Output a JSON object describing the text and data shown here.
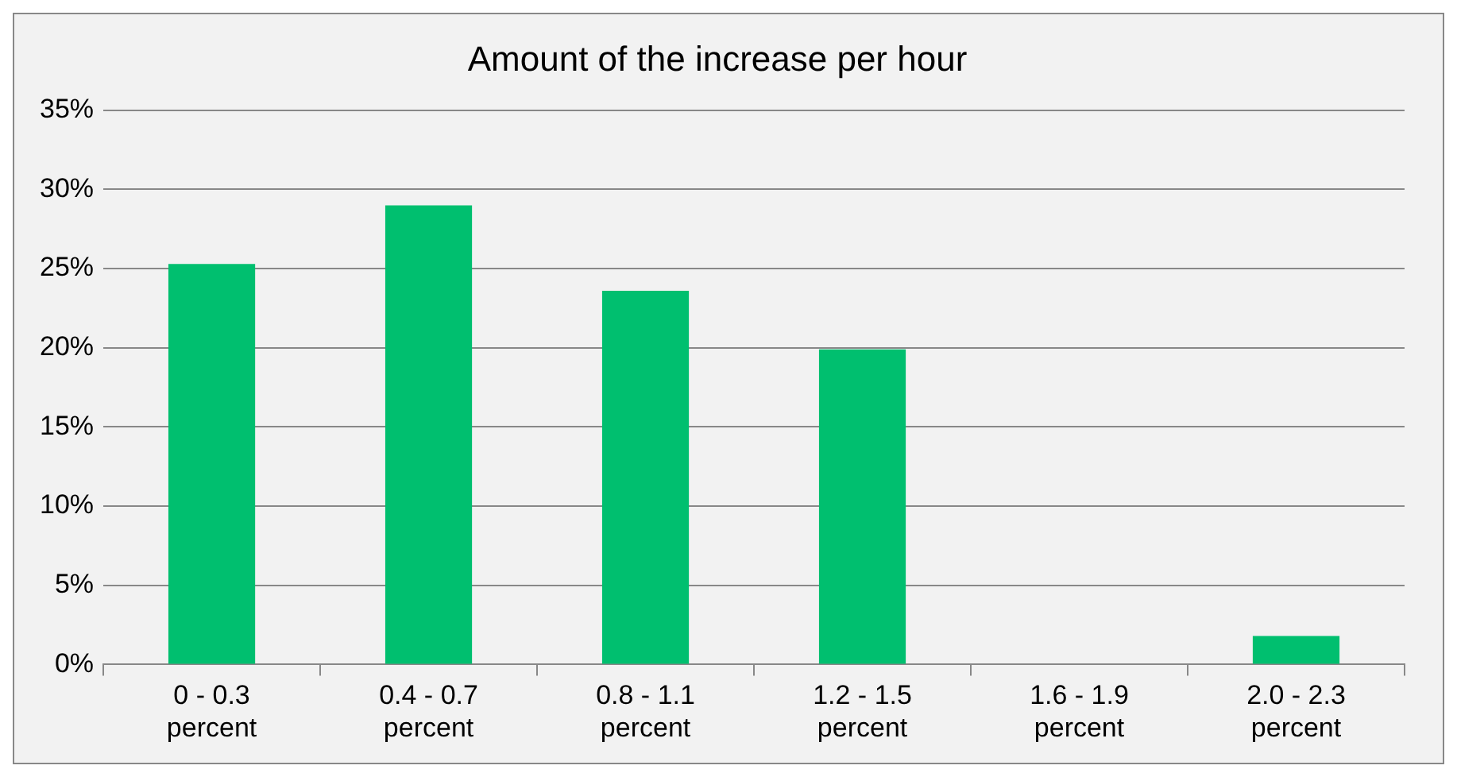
{
  "chart_data": {
    "type": "bar",
    "title": "Amount of the increase per hour",
    "categories": [
      "0 - 0.3 percent",
      "0.4 - 0.7 percent",
      "0.8 - 1.1 percent",
      "1.2 - 1.5 percent",
      "1.6 - 1.9 percent",
      "2.0 - 2.3 percent"
    ],
    "values": [
      25.3,
      29.0,
      23.6,
      19.9,
      0,
      1.8
    ],
    "color": "#00bf6f",
    "ylim": [
      0,
      35
    ],
    "yticks": [
      {
        "value": 0,
        "label": "0%"
      },
      {
        "value": 5,
        "label": "5%"
      },
      {
        "value": 10,
        "label": "10%"
      },
      {
        "value": 15,
        "label": "15%"
      },
      {
        "value": 20,
        "label": "20%"
      },
      {
        "value": 25,
        "label": "25%"
      },
      {
        "value": 30,
        "label": "30%"
      },
      {
        "value": 35,
        "label": "35%"
      }
    ],
    "grid": "y",
    "legend": false
  }
}
